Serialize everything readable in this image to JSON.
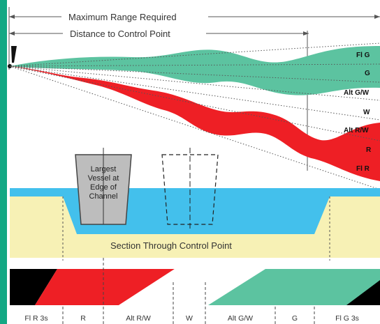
{
  "labels": {
    "max_range": "Maximum Range Required",
    "distance_control": "Distance to Control Point",
    "section": "Section Through Control Point",
    "vessel_line1": "Largest",
    "vessel_line2": "Vessel at",
    "vessel_line3": "Edge of",
    "vessel_line4": "Channel"
  },
  "sectors_right": [
    "Fl G",
    "G",
    "Alt G/W",
    "W",
    "Alt R/W",
    "R",
    "Fl R"
  ],
  "sectors_bottom": [
    "Fl R 3s",
    "R",
    "Alt R/W",
    "W",
    "Alt G/W",
    "G",
    "Fl G 3s"
  ],
  "colors": {
    "green": "#5cc3a0",
    "red": "#ee1f25",
    "water": "#43c0ec",
    "bank": "#f7f1b5",
    "black": "#000000",
    "frame": "#13a884"
  }
}
